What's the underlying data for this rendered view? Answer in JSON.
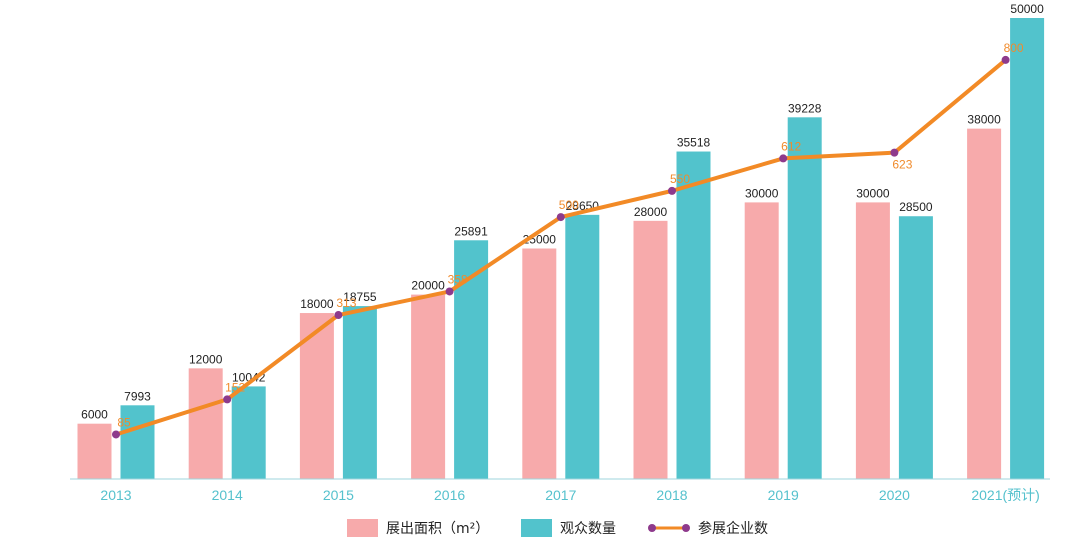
{
  "chart_data": {
    "type": "bar",
    "categories": [
      "2013",
      "2014",
      "2015",
      "2016",
      "2017",
      "2018",
      "2019",
      "2020",
      "2021(预计)"
    ],
    "series": [
      {
        "name": "展出面积（m²）",
        "type": "bar",
        "color": "#f7aaab",
        "values": [
          6000,
          12000,
          18000,
          20000,
          25000,
          28000,
          30000,
          30000,
          38000
        ]
      },
      {
        "name": "观众数量",
        "type": "bar",
        "color": "#52c3cc",
        "values": [
          7993,
          10042,
          18755,
          25891,
          28650,
          35518,
          39228,
          28500,
          50000
        ]
      },
      {
        "name": "参展企业数",
        "type": "line",
        "color": "#f28a26",
        "marker_color": "#8e3a8c",
        "values": [
          85,
          152,
          313,
          358,
          500,
          550,
          612,
          623,
          800
        ]
      }
    ],
    "bar_ylim": [
      0,
      50000
    ],
    "line_ylim": [
      0,
      880
    ],
    "grid": false,
    "legend_position": "bottom-center",
    "axis_color": "#9fd6dc"
  }
}
